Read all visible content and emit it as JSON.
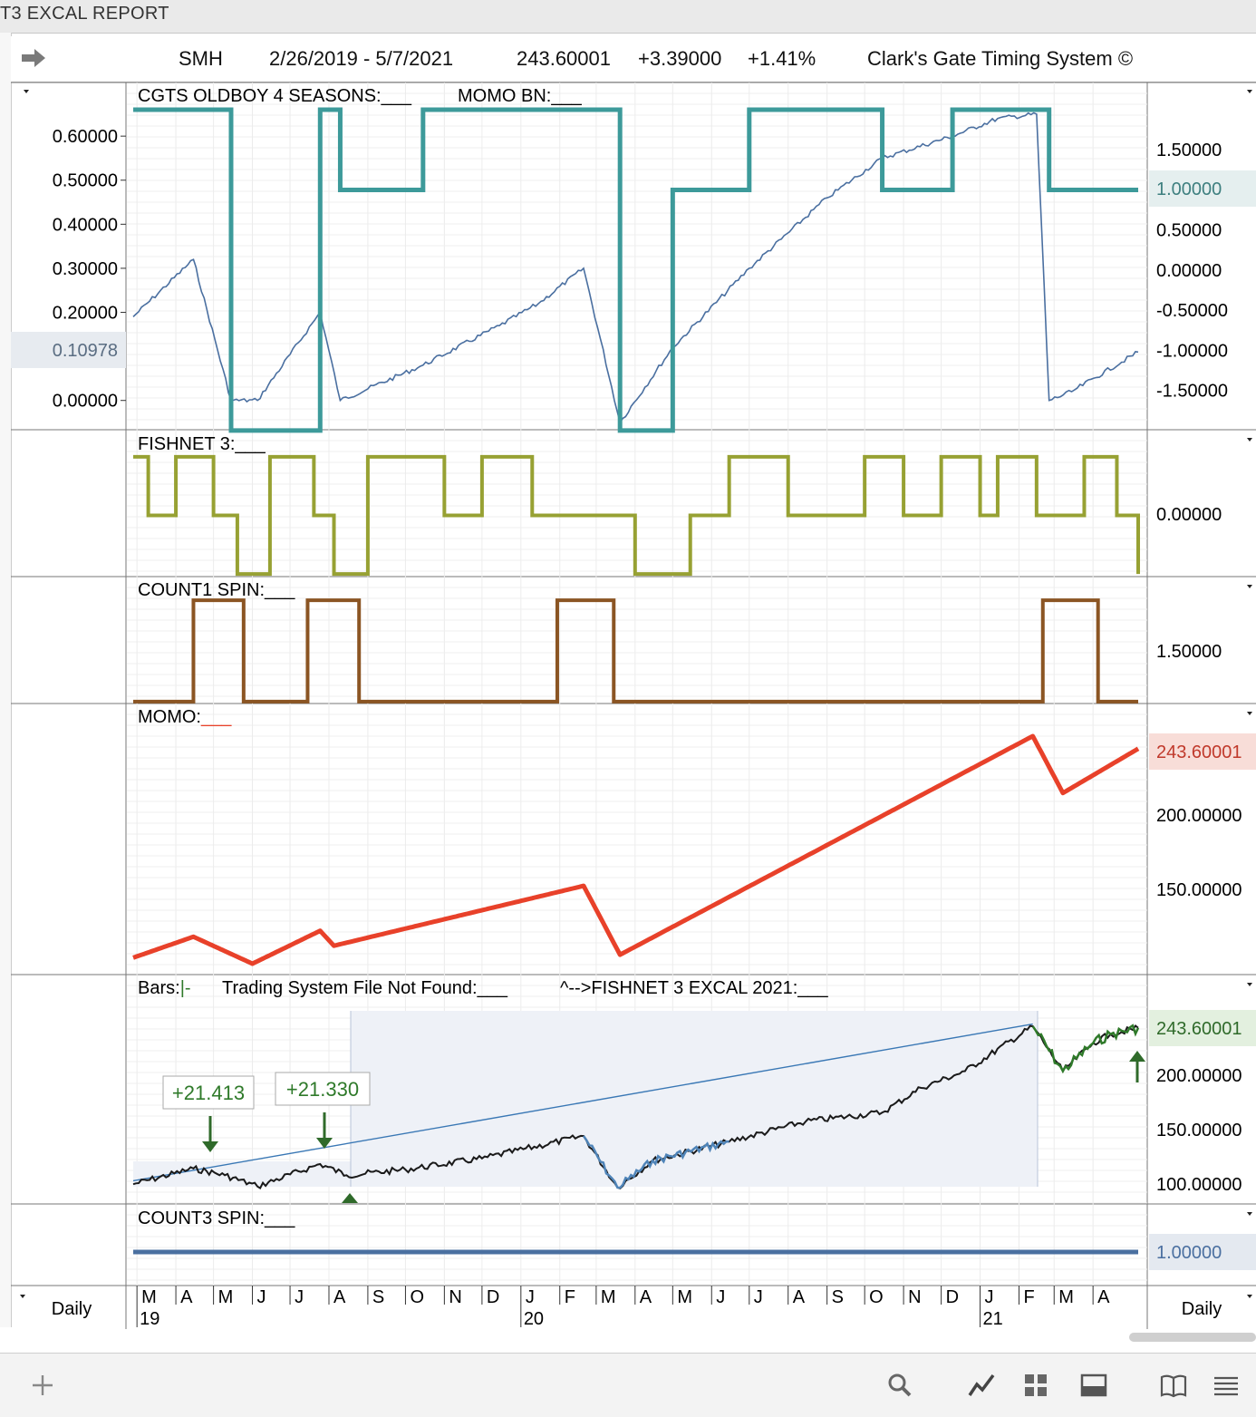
{
  "window": {
    "title": "T3 EXCAL REPORT"
  },
  "header": {
    "symbol": "SMH",
    "date_range": "2/26/2019 - 5/7/2021",
    "last": "243.60001",
    "change": "+3.39000",
    "change_pct": "+1.41%",
    "system": "Clark's Gate Timing System ©"
  },
  "panes": {
    "oldboy": {
      "title": "CGTS OLDBOY 4 SEASONS:___",
      "title2": "MOMO BN:___",
      "left_ticks": [
        "0.60000",
        "0.50000",
        "0.40000",
        "0.30000",
        "0.20000",
        "0.00000"
      ],
      "left_marker": "0.10978",
      "right_ticks": [
        "1.50000",
        "0.50000",
        "0.00000",
        "-0.50000",
        "-1.00000",
        "-1.50000"
      ],
      "right_marker": "1.00000",
      "colors": {
        "step": "#3d9a9a",
        "line": "#4a6fa0"
      }
    },
    "fishnet": {
      "title": "FISHNET 3:___",
      "right_ticks": [
        "0.00000"
      ],
      "color": "#97a133"
    },
    "count1": {
      "title": "COUNT1 SPIN:___",
      "right_ticks": [
        "1.50000"
      ],
      "color": "#8b5523"
    },
    "momo": {
      "title": "MOMO:",
      "title_suffix": "___",
      "right_marker": "243.60001",
      "right_ticks": [
        "200.00000",
        "150.00000"
      ],
      "color": "#e8412a"
    },
    "bars": {
      "title_a": "Bars:",
      "title_b": "|-",
      "title_c": "Trading System File Not Found:___",
      "title_d": "^-->FISHNET 3 EXCAL 2021:___",
      "right_marker": "243.60001",
      "right_ticks": [
        "200.00000",
        "150.00000",
        "100.00000"
      ],
      "callouts": [
        "+21.413",
        "+21.330"
      ],
      "colors": {
        "price": "#1a1a1a",
        "blue": "#4f84b8",
        "green": "#2f7a2a",
        "trend": "#3a78b5"
      }
    },
    "count3": {
      "title": "COUNT3 SPIN:___",
      "right_marker": "1.00000",
      "color": "#4a6fa0"
    }
  },
  "time_axis": {
    "interval_left": "Daily",
    "interval_right": "Daily",
    "months": [
      "M",
      "A",
      "M",
      "J",
      "J",
      "A",
      "S",
      "O",
      "N",
      "D",
      "J",
      "F",
      "M",
      "A",
      "M",
      "J",
      "J",
      "A",
      "S",
      "O",
      "N",
      "D",
      "J",
      "F",
      "M",
      "A"
    ],
    "years": [
      "19",
      "20",
      "21"
    ]
  },
  "chart_data": [
    {
      "type": "line",
      "title": "CGTS OLDBOY 4 SEASONS / MOMO BN",
      "x": [
        "2019-02-26",
        "2019-04-15",
        "2019-05-15",
        "2019-06-05",
        "2019-07-25",
        "2019-08-10",
        "2019-10-15",
        "2019-12-15",
        "2020-01-15",
        "2020-02-20",
        "2020-03-20",
        "2020-05-01",
        "2020-07-01",
        "2020-09-01",
        "2020-10-15",
        "2020-12-10",
        "2021-01-15",
        "2021-02-15",
        "2021-02-25",
        "2021-03-15",
        "2021-05-07"
      ],
      "series": [
        {
          "name": "CGTS OLDBOY 4 SEASONS",
          "axis": "right",
          "values": [
            2.0,
            2.0,
            -2.0,
            -2.0,
            2.0,
            1.0,
            2.0,
            2.0,
            2.0,
            2.0,
            -2.0,
            1.0,
            2.0,
            2.0,
            1.0,
            2.0,
            2.0,
            2.0,
            1.0,
            1.0,
            1.0
          ]
        },
        {
          "name": "MOMO BN",
          "axis": "left",
          "values": [
            0.19,
            0.32,
            0.0,
            0.0,
            0.2,
            0.0,
            0.08,
            0.17,
            0.22,
            0.3,
            -0.05,
            0.12,
            0.3,
            0.46,
            0.55,
            0.6,
            0.64,
            0.65,
            0.0,
            0.02,
            0.11
          ]
        }
      ],
      "ylim_left": [
        -0.05,
        0.66
      ],
      "ylim_right": [
        -1.9,
        2.0
      ]
    },
    {
      "type": "line",
      "title": "FISHNET 3",
      "x": [
        "2019-02-26",
        "2019-03-10",
        "2019-04-01",
        "2019-05-01",
        "2019-05-20",
        "2019-06-15",
        "2019-07-20",
        "2019-08-05",
        "2019-09-01",
        "2019-10-01",
        "2019-11-01",
        "2019-12-01",
        "2020-01-10",
        "2020-03-01",
        "2020-04-01",
        "2020-05-15",
        "2020-06-15",
        "2020-08-01",
        "2020-10-01",
        "2020-11-01",
        "2020-12-01",
        "2021-01-01",
        "2021-01-15",
        "2021-02-15",
        "2021-03-25",
        "2021-04-20",
        "2021-05-07"
      ],
      "values": [
        1,
        0,
        1,
        0,
        -1,
        1,
        0,
        -1,
        1,
        1,
        0,
        1,
        0,
        0,
        -1,
        0,
        1,
        0,
        1,
        0,
        1,
        0,
        1,
        0,
        1,
        0,
        -1
      ],
      "ylim": [
        -1.2,
        1.2
      ]
    },
    {
      "type": "line",
      "title": "COUNT1 SPIN",
      "x": [
        "2019-02-26",
        "2019-04-10",
        "2019-04-15",
        "2019-05-20",
        "2019-05-25",
        "2019-07-10",
        "2019-07-15",
        "2019-08-20",
        "2019-08-25",
        "2020-01-25",
        "2020-01-30",
        "2020-03-10",
        "2020-03-15",
        "2021-02-15",
        "2021-02-20",
        "2021-03-30",
        "2021-04-05",
        "2021-05-07"
      ],
      "values": [
        1,
        1,
        2,
        2,
        1,
        1,
        2,
        2,
        1,
        1,
        2,
        2,
        1,
        1,
        2,
        2,
        1,
        1
      ],
      "ylim": [
        0.9,
        2.1
      ]
    },
    {
      "type": "line",
      "title": "MOMO",
      "x": [
        "2019-02-26",
        "2019-04-15",
        "2019-06-01",
        "2019-07-25",
        "2019-08-05",
        "2020-02-20",
        "2020-03-20",
        "2021-02-12",
        "2021-03-08",
        "2021-05-07"
      ],
      "values": [
        104,
        118,
        100,
        122,
        112,
        152,
        106,
        252,
        214,
        243.6
      ],
      "ylim": [
        100,
        255
      ]
    },
    {
      "type": "line",
      "title": "Bars",
      "x": [
        "2019-02-26",
        "2019-04-15",
        "2019-05-10",
        "2019-06-05",
        "2019-07-25",
        "2019-08-15",
        "2019-10-01",
        "2019-12-01",
        "2020-02-20",
        "2020-03-18",
        "2020-04-15",
        "2020-06-15",
        "2020-08-15",
        "2020-10-15",
        "2020-11-15",
        "2020-12-20",
        "2021-02-12",
        "2021-03-08",
        "2021-04-01",
        "2021-04-15",
        "2021-05-07"
      ],
      "values": [
        104,
        118,
        112,
        102,
        122,
        112,
        117,
        127,
        147,
        101,
        125,
        142,
        160,
        168,
        190,
        205,
        245,
        205,
        230,
        238,
        243.6
      ],
      "annotations": [
        "+21.413",
        "+21.330"
      ],
      "ylim": [
        92,
        258
      ]
    },
    {
      "type": "line",
      "title": "COUNT3 SPIN",
      "x": [
        "2019-02-26",
        "2021-05-07"
      ],
      "values": [
        1.0,
        1.0
      ],
      "ylim": [
        0.5,
        1.5
      ]
    }
  ]
}
